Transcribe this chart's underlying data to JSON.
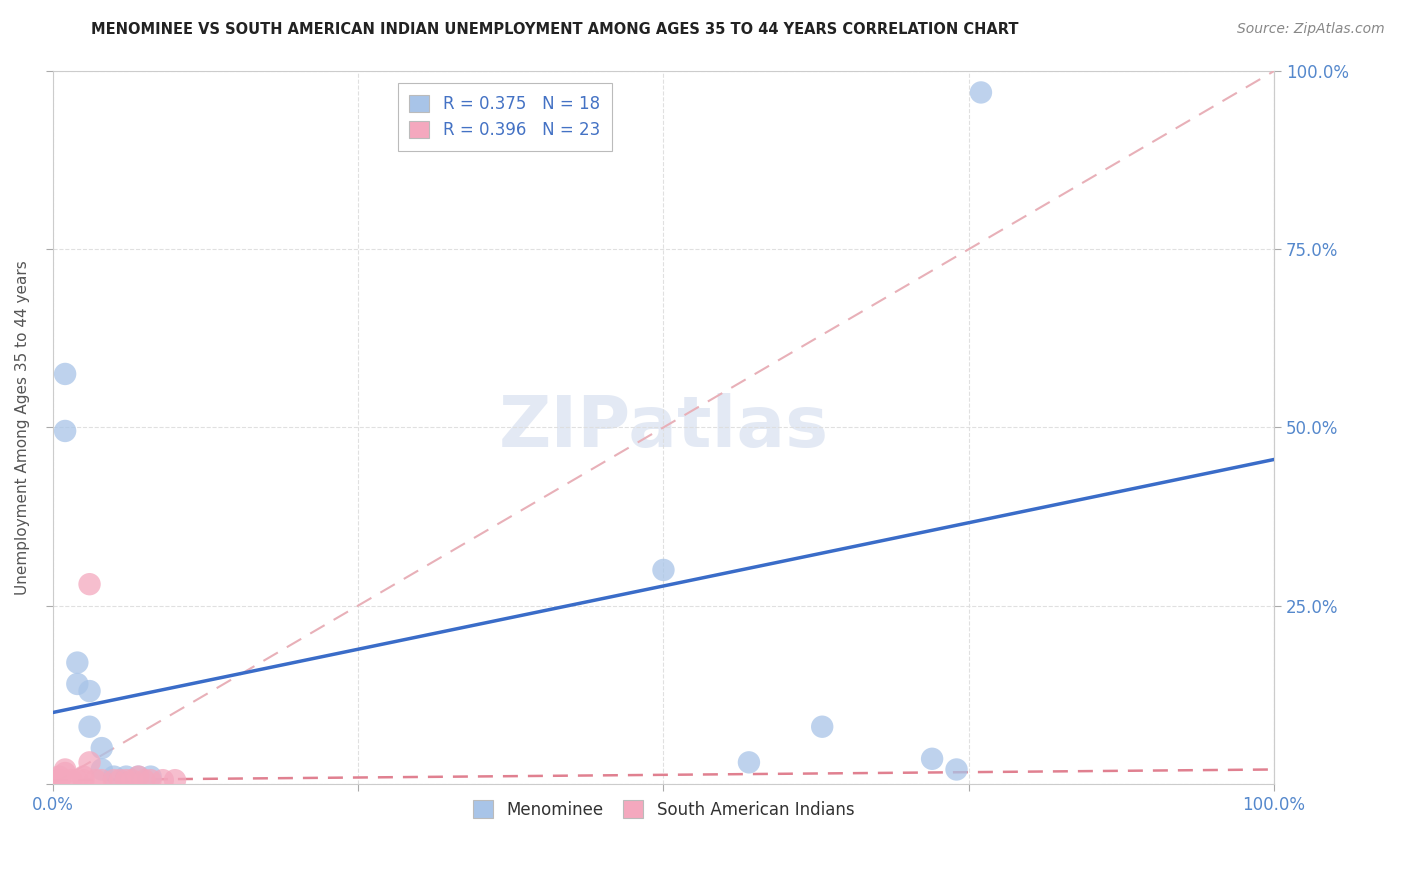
{
  "title": "MENOMINEE VS SOUTH AMERICAN INDIAN UNEMPLOYMENT AMONG AGES 35 TO 44 YEARS CORRELATION CHART",
  "source": "Source: ZipAtlas.com",
  "ylabel": "Unemployment Among Ages 35 to 44 years",
  "xlim": [
    0,
    1.0
  ],
  "ylim": [
    0,
    1.0
  ],
  "menominee_R": 0.375,
  "menominee_N": 18,
  "sai_R": 0.396,
  "sai_N": 23,
  "menominee_color": "#a8c4e8",
  "sai_color": "#f4a8be",
  "menominee_line_color": "#3a6cc8",
  "sai_line_color": "#e08090",
  "diagonal_color": "#e8b0b8",
  "background_color": "#ffffff",
  "watermark_color": "#cdd8ec",
  "menominee_x": [
    0.01,
    0.01,
    0.02,
    0.02,
    0.03,
    0.03,
    0.04,
    0.04,
    0.05,
    0.06,
    0.07,
    0.08,
    0.5,
    0.57,
    0.63,
    0.72,
    0.74,
    0.76
  ],
  "menominee_y": [
    0.575,
    0.495,
    0.17,
    0.14,
    0.13,
    0.08,
    0.05,
    0.02,
    0.01,
    0.01,
    0.01,
    0.01,
    0.3,
    0.03,
    0.08,
    0.035,
    0.02,
    0.97
  ],
  "sai_x": [
    0.005,
    0.005,
    0.005,
    0.005,
    0.01,
    0.01,
    0.015,
    0.02,
    0.025,
    0.025,
    0.03,
    0.03,
    0.035,
    0.04,
    0.05,
    0.055,
    0.06,
    0.065,
    0.07,
    0.075,
    0.08,
    0.09,
    0.1
  ],
  "sai_y": [
    0.005,
    0.005,
    0.005,
    0.01,
    0.015,
    0.02,
    0.005,
    0.005,
    0.005,
    0.01,
    0.28,
    0.03,
    0.005,
    0.005,
    0.005,
    0.005,
    0.005,
    0.005,
    0.01,
    0.005,
    0.005,
    0.005,
    0.005
  ],
  "men_line_x0": 0.0,
  "men_line_y0": 0.1,
  "men_line_x1": 1.0,
  "men_line_y1": 0.455,
  "sai_line_x0": 0.0,
  "sai_line_y0": 0.005,
  "sai_line_x1": 1.0,
  "sai_line_y1": 0.02
}
